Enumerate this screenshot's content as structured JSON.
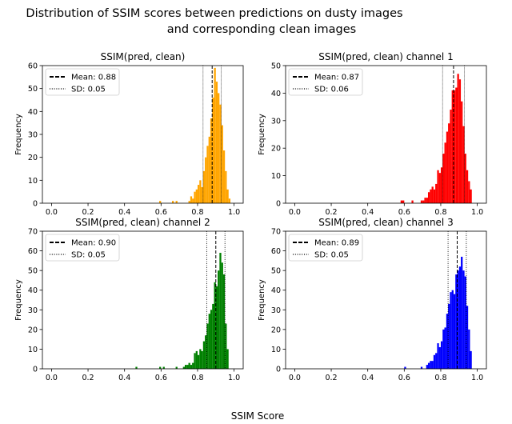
{
  "figure": {
    "suptitle_line1": "Distribution of SSIM scores between predictions on dusty images",
    "suptitle_line2": "and corresponding clean images",
    "xlabel": "SSIM Score"
  },
  "chart_data": [
    {
      "type": "bar",
      "title": "SSIM(pred, clean)",
      "ylabel": "Frequency",
      "color": "#FFA500",
      "xlim": [
        -0.05,
        1.05
      ],
      "ylim": [
        0,
        60
      ],
      "xticks": [
        "0.0",
        "0.2",
        "0.4",
        "0.6",
        "0.8",
        "1.0"
      ],
      "yticks": [
        "0",
        "10",
        "20",
        "30",
        "40",
        "50",
        "60"
      ],
      "mean": 0.88,
      "sd": 0.05,
      "legend": [
        {
          "style": "dashed",
          "label": "Mean: 0.88"
        },
        {
          "style": "dotted",
          "label": "SD: 0.05"
        }
      ],
      "legend_position": "upper left",
      "bin_width": 0.01,
      "bins": [
        [
          0.59,
          1
        ],
        [
          0.66,
          1
        ],
        [
          0.68,
          1
        ],
        [
          0.75,
          1
        ],
        [
          0.76,
          3
        ],
        [
          0.77,
          2
        ],
        [
          0.78,
          5
        ],
        [
          0.79,
          6
        ],
        [
          0.8,
          8
        ],
        [
          0.81,
          10
        ],
        [
          0.82,
          7
        ],
        [
          0.83,
          14
        ],
        [
          0.84,
          20
        ],
        [
          0.85,
          25
        ],
        [
          0.86,
          29
        ],
        [
          0.87,
          37
        ],
        [
          0.88,
          46
        ],
        [
          0.89,
          59
        ],
        [
          0.9,
          53
        ],
        [
          0.91,
          48
        ],
        [
          0.92,
          43
        ],
        [
          0.93,
          34
        ],
        [
          0.94,
          23
        ],
        [
          0.95,
          14
        ],
        [
          0.96,
          6
        ],
        [
          0.97,
          2
        ]
      ]
    },
    {
      "type": "bar",
      "title": "SSIM(pred, clean) channel 1",
      "ylabel": "Frequency",
      "color": "#FF0000",
      "xlim": [
        -0.05,
        1.05
      ],
      "ylim": [
        0,
        50
      ],
      "xticks": [
        "0.0",
        "0.2",
        "0.4",
        "0.6",
        "0.8",
        "1.0"
      ],
      "yticks": [
        "0",
        "10",
        "20",
        "30",
        "40",
        "50"
      ],
      "mean": 0.87,
      "sd": 0.06,
      "legend": [
        {
          "style": "dashed",
          "label": "Mean: 0.87"
        },
        {
          "style": "dotted",
          "label": "SD: 0.06"
        }
      ],
      "legend_position": "upper left",
      "bin_width": 0.01,
      "bins": [
        [
          0.58,
          1
        ],
        [
          0.59,
          1
        ],
        [
          0.64,
          1
        ],
        [
          0.69,
          1
        ],
        [
          0.7,
          1
        ],
        [
          0.71,
          2
        ],
        [
          0.72,
          2
        ],
        [
          0.73,
          4
        ],
        [
          0.74,
          5
        ],
        [
          0.75,
          6
        ],
        [
          0.76,
          5
        ],
        [
          0.77,
          7
        ],
        [
          0.78,
          12
        ],
        [
          0.79,
          11
        ],
        [
          0.8,
          13
        ],
        [
          0.81,
          18
        ],
        [
          0.82,
          22
        ],
        [
          0.83,
          26
        ],
        [
          0.84,
          29
        ],
        [
          0.85,
          34
        ],
        [
          0.86,
          41
        ],
        [
          0.87,
          41
        ],
        [
          0.88,
          42
        ],
        [
          0.89,
          47
        ],
        [
          0.9,
          45
        ],
        [
          0.91,
          37
        ],
        [
          0.92,
          28
        ],
        [
          0.93,
          18
        ],
        [
          0.94,
          12
        ],
        [
          0.95,
          8
        ],
        [
          0.96,
          5
        ]
      ]
    },
    {
      "type": "bar",
      "title": "SSIM(pred, clean) channel 2",
      "ylabel": "Frequency",
      "color": "#008000",
      "xlim": [
        -0.05,
        1.05
      ],
      "ylim": [
        0,
        70
      ],
      "xticks": [
        "0.0",
        "0.2",
        "0.4",
        "0.6",
        "0.8",
        "1.0"
      ],
      "yticks": [
        "0",
        "10",
        "20",
        "30",
        "40",
        "50",
        "60",
        "70"
      ],
      "mean": 0.9,
      "sd": 0.05,
      "legend": [
        {
          "style": "dashed",
          "label": "Mean: 0.90"
        },
        {
          "style": "dotted",
          "label": "SD: 0.05"
        }
      ],
      "legend_position": "upper left",
      "bin_width": 0.01,
      "bins": [
        [
          0.46,
          1
        ],
        [
          0.59,
          1
        ],
        [
          0.61,
          1
        ],
        [
          0.68,
          1
        ],
        [
          0.72,
          1
        ],
        [
          0.73,
          2
        ],
        [
          0.74,
          2
        ],
        [
          0.75,
          3
        ],
        [
          0.76,
          2
        ],
        [
          0.77,
          3
        ],
        [
          0.78,
          8
        ],
        [
          0.79,
          9
        ],
        [
          0.8,
          7
        ],
        [
          0.81,
          10
        ],
        [
          0.82,
          9
        ],
        [
          0.83,
          14
        ],
        [
          0.84,
          17
        ],
        [
          0.85,
          23
        ],
        [
          0.86,
          28
        ],
        [
          0.87,
          30
        ],
        [
          0.88,
          33
        ],
        [
          0.89,
          44
        ],
        [
          0.9,
          42
        ],
        [
          0.91,
          50
        ],
        [
          0.92,
          59
        ],
        [
          0.93,
          54
        ],
        [
          0.94,
          48
        ],
        [
          0.95,
          23
        ],
        [
          0.96,
          10
        ]
      ]
    },
    {
      "type": "bar",
      "title": "SSIM(pred, clean) channel 3",
      "ylabel": "Frequency",
      "color": "#0000FF",
      "xlim": [
        -0.05,
        1.05
      ],
      "ylim": [
        0,
        70
      ],
      "xticks": [
        "0.0",
        "0.2",
        "0.4",
        "0.6",
        "0.8",
        "1.0"
      ],
      "yticks": [
        "0",
        "10",
        "20",
        "30",
        "40",
        "50",
        "60",
        "70"
      ],
      "mean": 0.89,
      "sd": 0.05,
      "legend": [
        {
          "style": "dashed",
          "label": "Mean: 0.89"
        },
        {
          "style": "dotted",
          "label": "SD: 0.05"
        }
      ],
      "legend_position": "upper left",
      "bin_width": 0.01,
      "bins": [
        [
          0.6,
          1
        ],
        [
          0.69,
          1
        ],
        [
          0.72,
          2
        ],
        [
          0.73,
          3
        ],
        [
          0.74,
          4
        ],
        [
          0.75,
          4
        ],
        [
          0.76,
          7
        ],
        [
          0.77,
          8
        ],
        [
          0.78,
          13
        ],
        [
          0.79,
          11
        ],
        [
          0.8,
          14
        ],
        [
          0.81,
          20
        ],
        [
          0.82,
          21
        ],
        [
          0.83,
          28
        ],
        [
          0.84,
          33
        ],
        [
          0.85,
          39
        ],
        [
          0.86,
          40
        ],
        [
          0.87,
          38
        ],
        [
          0.88,
          48
        ],
        [
          0.89,
          50
        ],
        [
          0.9,
          52
        ],
        [
          0.91,
          57
        ],
        [
          0.92,
          50
        ],
        [
          0.93,
          47
        ],
        [
          0.94,
          32
        ],
        [
          0.95,
          20
        ],
        [
          0.96,
          9
        ]
      ]
    }
  ]
}
